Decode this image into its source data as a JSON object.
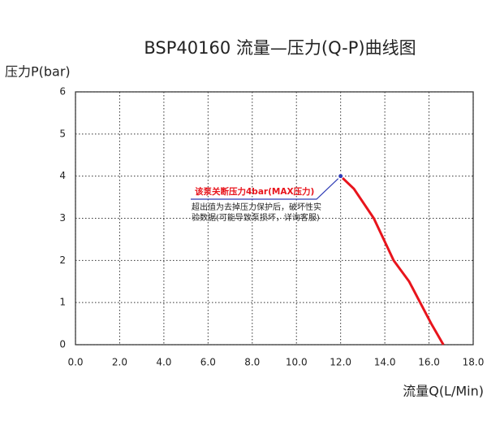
{
  "chart_data": {
    "type": "line",
    "title": "BSP40160 流量—压力(Q-P)曲线图",
    "y_label": "压力P(bar)",
    "x_label": "流量Q(L/Min)",
    "series": [
      {
        "name": "Q-P",
        "color": "#e8141c",
        "x": [
          12.0,
          12.6,
          13.5,
          14.4,
          15.1,
          15.6,
          16.1,
          16.65
        ],
        "values": [
          4.0,
          3.7,
          3.0,
          2.0,
          1.5,
          1.0,
          0.5,
          0.0
        ]
      }
    ],
    "xlim": [
      0,
      18
    ],
    "xticks": [
      {
        "value": 0,
        "label": "0.0"
      },
      {
        "value": 2,
        "label": "2.0"
      },
      {
        "value": 4,
        "label": "4.0"
      },
      {
        "value": 6,
        "label": "6.0"
      },
      {
        "value": 8,
        "label": "8.0"
      },
      {
        "value": 10,
        "label": "10.0"
      },
      {
        "value": 12,
        "label": "12.0"
      },
      {
        "value": 14,
        "label": "14.0"
      },
      {
        "value": 16,
        "label": "16.0"
      },
      {
        "value": 18,
        "label": "18.0"
      }
    ],
    "ylim": [
      0,
      6
    ],
    "yticks": [
      0,
      1,
      2,
      3,
      4,
      5,
      6
    ],
    "grid": true,
    "annotations": [
      "该泵关断压力4bar(MAX压力)",
      "超出值为去掉压力保护后，破坏性实",
      "验数据(可能导致泵损坏，详询客服)"
    ]
  }
}
